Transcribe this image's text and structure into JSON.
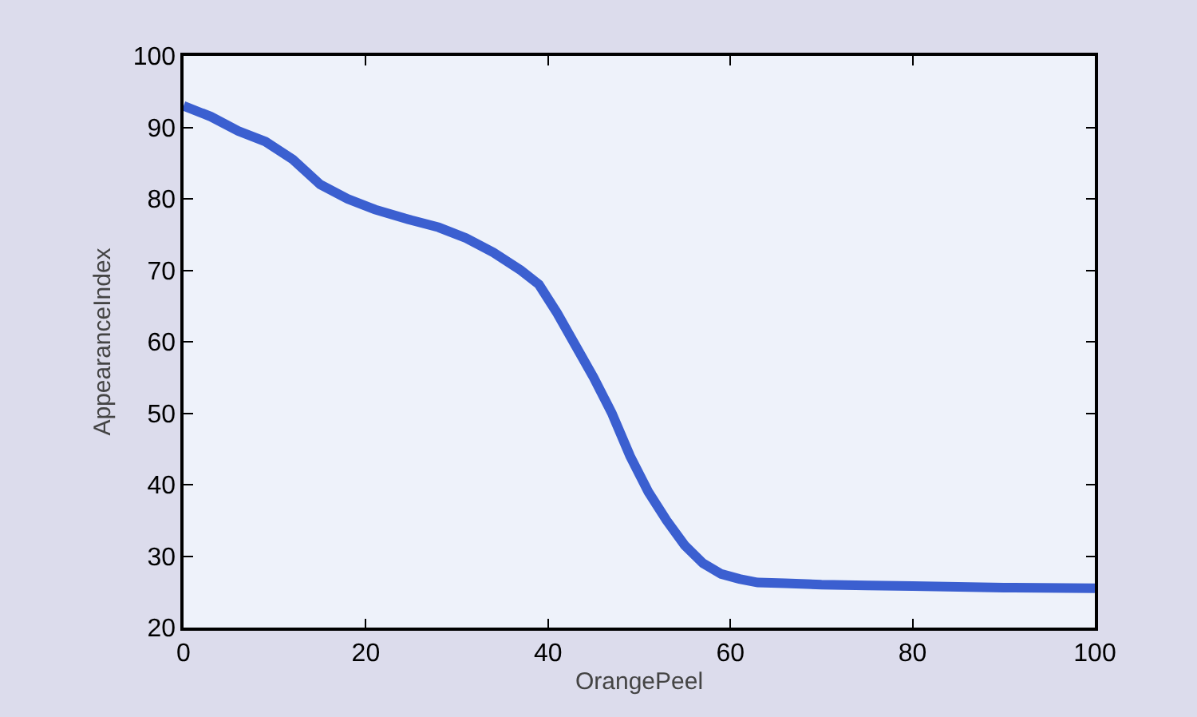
{
  "chart_data": {
    "type": "line",
    "xlabel": "OrangePeel",
    "ylabel": "AppearanceIndex",
    "x": [
      0,
      3,
      6,
      9,
      12,
      15,
      18,
      21,
      25,
      28,
      31,
      34,
      37,
      39,
      41,
      43,
      45,
      47,
      49,
      51,
      53,
      55,
      57,
      59,
      61,
      63,
      66,
      70,
      75,
      80,
      90,
      100
    ],
    "series": [
      {
        "color": "#3b5fd0",
        "values": [
          93,
          91.5,
          89.5,
          88,
          85.5,
          82,
          80,
          78.5,
          77,
          76,
          74.5,
          72.5,
          70,
          68,
          64,
          59.5,
          55,
          50,
          44,
          39,
          35,
          31.5,
          29,
          27.5,
          26.8,
          26.3,
          26.2,
          26,
          25.9,
          25.8,
          25.6,
          25.5
        ]
      }
    ],
    "xlim": [
      0,
      100
    ],
    "xticks": [
      0,
      20,
      40,
      60,
      80,
      100
    ],
    "ylim": [
      20,
      100
    ],
    "yticks": [
      20,
      30,
      40,
      50,
      60,
      70,
      80,
      90,
      100
    ],
    "grid": false,
    "marker": "none",
    "line_style": "solid"
  }
}
